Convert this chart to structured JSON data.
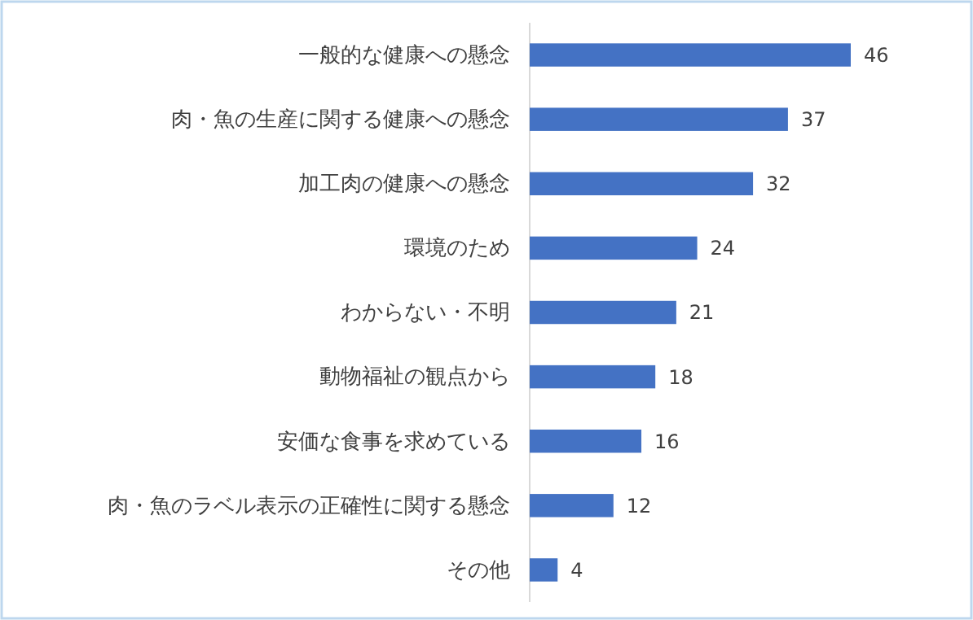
{
  "chart_data": {
    "type": "bar",
    "orientation": "horizontal",
    "categories": [
      "一般的な健康への懸念",
      "肉・魚の生産に関する健康への懸念",
      "加工肉の健康への懸念",
      "環境のため",
      "わからない・不明",
      "動物福祉の観点から",
      "安価な食事を求めている",
      "肉・魚のラベル表示の正確性に関する懸念",
      "その他"
    ],
    "values": [
      46,
      37,
      32,
      24,
      21,
      18,
      16,
      12,
      4
    ],
    "color": "#4472c4",
    "data_labels": true
  }
}
